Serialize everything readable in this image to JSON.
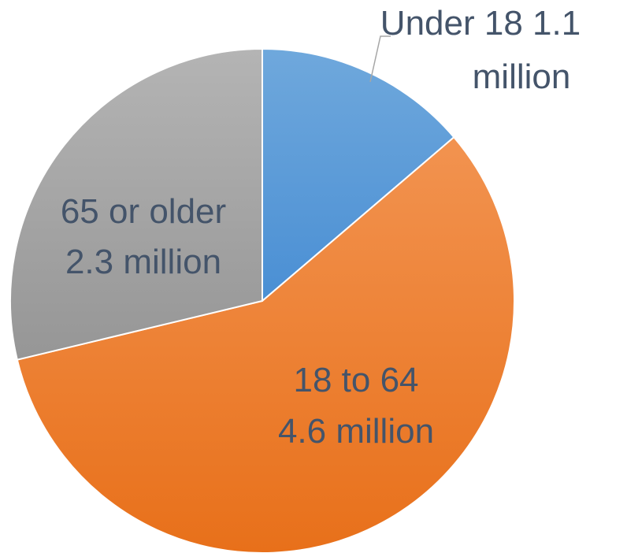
{
  "chart_data": {
    "type": "pie",
    "title": "",
    "slices": [
      {
        "label_line1": "Under 18  1.1",
        "label_line2": "million",
        "value": 1.1,
        "color_top": "#6fa8dc",
        "color_bottom": "#4a8fd4"
      },
      {
        "label_line1": "18 to 64",
        "label_line2": "4.6 million",
        "value": 4.6,
        "color_top": "#f29350",
        "color_bottom": "#e8701a"
      },
      {
        "label_line1": "65 or older",
        "label_line2": "2.3 million",
        "value": 2.3,
        "color_top": "#b4b4b4",
        "color_bottom": "#969696"
      }
    ],
    "units": "million",
    "start_angle": "12 o'clock",
    "direction": "clockwise",
    "legend": "none",
    "label_color": "#44546A",
    "leader_line_color": "#a6a6a6"
  }
}
